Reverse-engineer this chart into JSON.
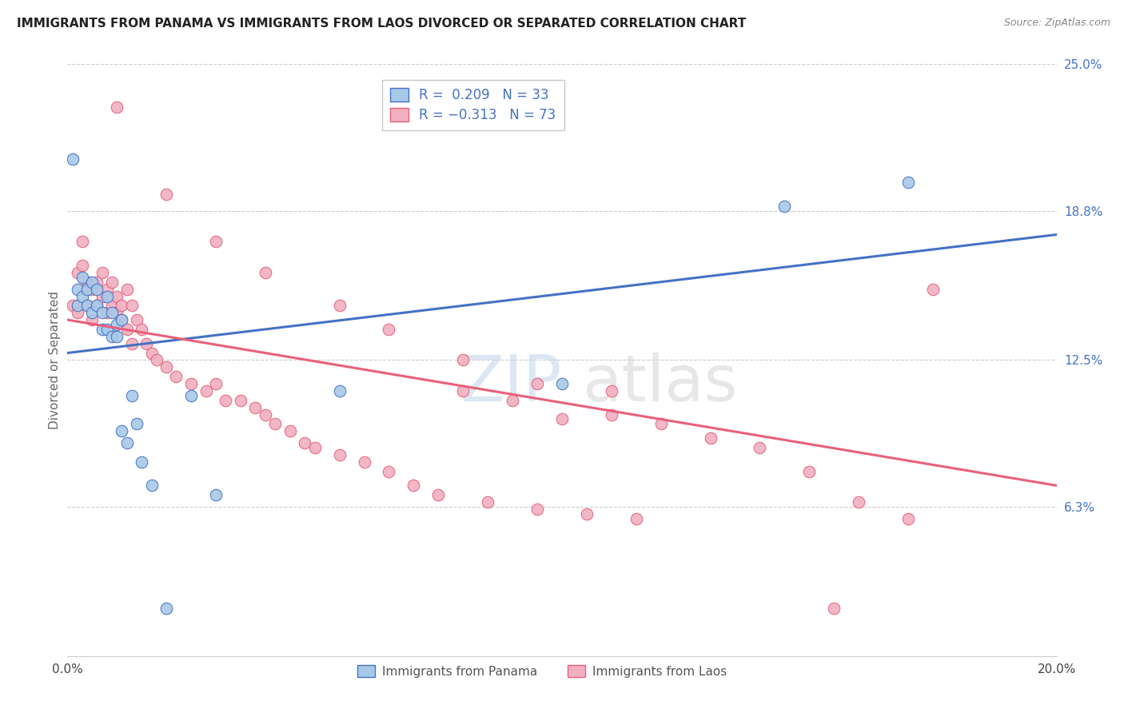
{
  "title": "IMMIGRANTS FROM PANAMA VS IMMIGRANTS FROM LAOS DIVORCED OR SEPARATED CORRELATION CHART",
  "source": "Source: ZipAtlas.com",
  "ylabel": "Divorced or Separated",
  "x_min": 0.0,
  "x_max": 0.2,
  "y_min": 0.0,
  "y_max": 0.25,
  "x_ticks": [
    0.0,
    0.04,
    0.08,
    0.12,
    0.16,
    0.2
  ],
  "x_tick_labels": [
    "0.0%",
    "",
    "",
    "",
    "",
    "20.0%"
  ],
  "y_tick_labels_right": [
    "25.0%",
    "18.8%",
    "12.5%",
    "6.3%"
  ],
  "y_tick_vals_right": [
    0.25,
    0.188,
    0.125,
    0.063
  ],
  "color_blue": "#a8c8e8",
  "color_pink": "#f0b0c0",
  "color_blue_line": "#4472c4",
  "color_pink_line": "#e8607a",
  "blue_line_x": [
    0.0,
    0.2
  ],
  "blue_line_y": [
    0.128,
    0.178
  ],
  "pink_line_x": [
    0.0,
    0.2
  ],
  "pink_line_y": [
    0.142,
    0.072
  ],
  "panama_x": [
    0.001,
    0.002,
    0.002,
    0.003,
    0.003,
    0.004,
    0.004,
    0.005,
    0.005,
    0.006,
    0.006,
    0.007,
    0.007,
    0.008,
    0.008,
    0.009,
    0.009,
    0.01,
    0.01,
    0.011,
    0.011,
    0.012,
    0.013,
    0.014,
    0.015,
    0.017,
    0.02,
    0.025,
    0.03,
    0.055,
    0.1,
    0.145,
    0.17
  ],
  "panama_y": [
    0.21,
    0.155,
    0.148,
    0.16,
    0.152,
    0.155,
    0.148,
    0.158,
    0.145,
    0.155,
    0.148,
    0.145,
    0.138,
    0.152,
    0.138,
    0.145,
    0.135,
    0.14,
    0.135,
    0.142,
    0.095,
    0.09,
    0.11,
    0.098,
    0.082,
    0.072,
    0.02,
    0.11,
    0.068,
    0.112,
    0.115,
    0.19,
    0.2
  ],
  "laos_x": [
    0.001,
    0.002,
    0.002,
    0.003,
    0.003,
    0.004,
    0.004,
    0.005,
    0.005,
    0.006,
    0.006,
    0.007,
    0.007,
    0.008,
    0.008,
    0.009,
    0.009,
    0.01,
    0.01,
    0.011,
    0.011,
    0.012,
    0.012,
    0.013,
    0.013,
    0.014,
    0.015,
    0.016,
    0.017,
    0.018,
    0.02,
    0.022,
    0.025,
    0.028,
    0.03,
    0.032,
    0.035,
    0.038,
    0.04,
    0.042,
    0.045,
    0.048,
    0.05,
    0.055,
    0.06,
    0.065,
    0.07,
    0.075,
    0.08,
    0.085,
    0.09,
    0.095,
    0.1,
    0.105,
    0.11,
    0.115,
    0.12,
    0.13,
    0.14,
    0.15,
    0.16,
    0.17,
    0.175,
    0.01,
    0.02,
    0.03,
    0.04,
    0.055,
    0.065,
    0.08,
    0.095,
    0.11,
    0.155
  ],
  "laos_y": [
    0.148,
    0.162,
    0.145,
    0.175,
    0.165,
    0.158,
    0.148,
    0.155,
    0.142,
    0.158,
    0.148,
    0.162,
    0.152,
    0.155,
    0.145,
    0.158,
    0.148,
    0.152,
    0.145,
    0.148,
    0.142,
    0.155,
    0.138,
    0.148,
    0.132,
    0.142,
    0.138,
    0.132,
    0.128,
    0.125,
    0.122,
    0.118,
    0.115,
    0.112,
    0.115,
    0.108,
    0.108,
    0.105,
    0.102,
    0.098,
    0.095,
    0.09,
    0.088,
    0.085,
    0.082,
    0.078,
    0.072,
    0.068,
    0.112,
    0.065,
    0.108,
    0.062,
    0.1,
    0.06,
    0.112,
    0.058,
    0.098,
    0.092,
    0.088,
    0.078,
    0.065,
    0.058,
    0.155,
    0.232,
    0.195,
    0.175,
    0.162,
    0.148,
    0.138,
    0.125,
    0.115,
    0.102,
    0.02
  ]
}
